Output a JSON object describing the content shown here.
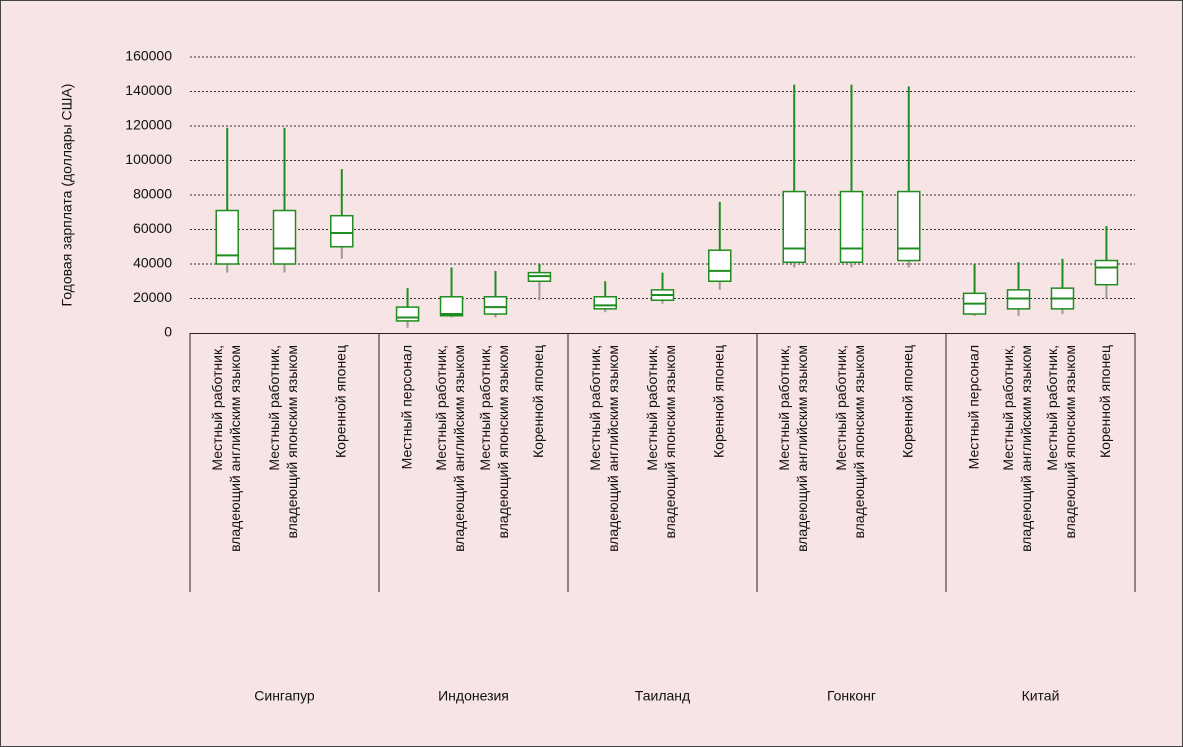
{
  "chart_data": {
    "type": "box",
    "ylabel": "Годовая зарплата (доллары США)",
    "ylim": [
      0,
      160000
    ],
    "yticks": [
      0,
      20000,
      40000,
      60000,
      80000,
      100000,
      120000,
      140000,
      160000
    ],
    "grid": true,
    "color": "#1f8c1f",
    "lower_whisker_color": "#9a9a9a",
    "groups": [
      {
        "name": "Сингапур",
        "boxes": [
          {
            "label": [
              "Местный работник,",
              "владеющий английским языком"
            ],
            "min": 35000,
            "q1": 40000,
            "median": 45000,
            "q3": 71000,
            "max": 119000
          },
          {
            "label": [
              "Местный работник,",
              "владеющий японским языком"
            ],
            "min": 35000,
            "q1": 40000,
            "median": 49000,
            "q3": 71000,
            "max": 119000
          },
          {
            "label": [
              "Коренной японец"
            ],
            "min": 43000,
            "q1": 50000,
            "median": 58000,
            "q3": 68000,
            "max": 95000
          }
        ]
      },
      {
        "name": "Индонезия",
        "boxes": [
          {
            "label": [
              "Местный персонал"
            ],
            "min": 3000,
            "q1": 7000,
            "median": 9000,
            "q3": 15000,
            "max": 26000
          },
          {
            "label": [
              "Местный работник,",
              "владеющий английским языком"
            ],
            "min": 9000,
            "q1": 10000,
            "median": 11000,
            "q3": 21000,
            "max": 38000
          },
          {
            "label": [
              "Местный работник,",
              "владеющий японским языком"
            ],
            "min": 9000,
            "q1": 11000,
            "median": 15000,
            "q3": 21000,
            "max": 36000
          },
          {
            "label": [
              "Коренной японец"
            ],
            "min": 19000,
            "q1": 30000,
            "median": 33000,
            "q3": 35000,
            "max": 40000
          }
        ]
      },
      {
        "name": "Таиланд",
        "boxes": [
          {
            "label": [
              "Местный работник,",
              "владеющий английским языком"
            ],
            "min": 12000,
            "q1": 14000,
            "median": 16000,
            "q3": 21000,
            "max": 30000
          },
          {
            "label": [
              "Местный работник,",
              "владеющий японским языком"
            ],
            "min": 17000,
            "q1": 19000,
            "median": 22000,
            "q3": 25000,
            "max": 35000
          },
          {
            "label": [
              "Коренной японец"
            ],
            "min": 25000,
            "q1": 30000,
            "median": 36000,
            "q3": 48000,
            "max": 76000
          }
        ]
      },
      {
        "name": "Гонконг",
        "boxes": [
          {
            "label": [
              "Местный работник,",
              "владеющий английским языком"
            ],
            "min": 38000,
            "q1": 41000,
            "median": 49000,
            "q3": 82000,
            "max": 144000
          },
          {
            "label": [
              "Местный работник,",
              "владеющий японским языком"
            ],
            "min": 38000,
            "q1": 41000,
            "median": 49000,
            "q3": 82000,
            "max": 144000
          },
          {
            "label": [
              "Коренной японец"
            ],
            "min": 38000,
            "q1": 42000,
            "median": 49000,
            "q3": 82000,
            "max": 143000
          }
        ]
      },
      {
        "name": "Китай",
        "boxes": [
          {
            "label": [
              "Местный персонал"
            ],
            "min": 10000,
            "q1": 11000,
            "median": 17000,
            "q3": 23000,
            "max": 40000
          },
          {
            "label": [
              "Местный работник,",
              "владеющий английским языком"
            ],
            "min": 10000,
            "q1": 14000,
            "median": 20000,
            "q3": 25000,
            "max": 41000
          },
          {
            "label": [
              "Местный работник,",
              "владеющий японским языком"
            ],
            "min": 11000,
            "q1": 14000,
            "median": 20000,
            "q3": 26000,
            "max": 43000
          },
          {
            "label": [
              "Коренной японец"
            ],
            "min": 20000,
            "q1": 28000,
            "median": 38000,
            "q3": 42000,
            "max": 62000
          }
        ]
      }
    ]
  }
}
